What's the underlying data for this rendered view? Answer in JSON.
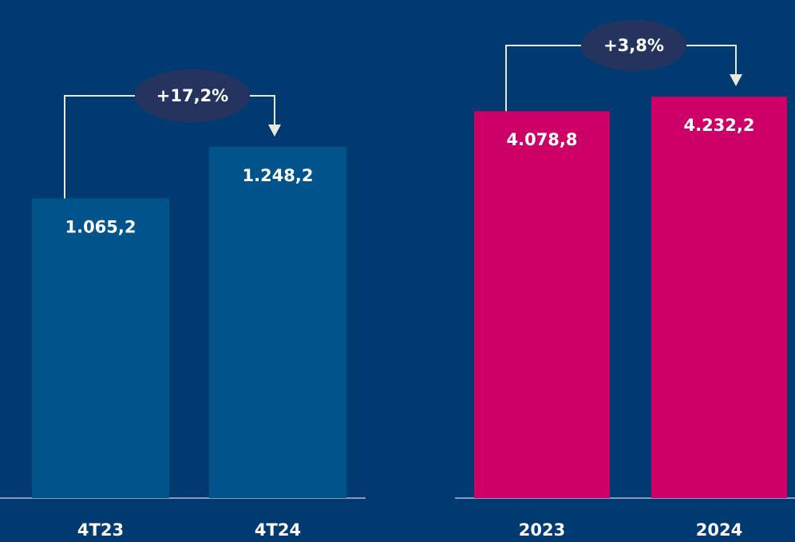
{
  "chart_data": [
    {
      "type": "bar",
      "categories": [
        "4T23",
        "4T24"
      ],
      "values": [
        1065.2,
        1248.2
      ],
      "value_labels": [
        "1.065,2",
        "1.248,2"
      ],
      "color": "#00538b",
      "annotation": "+17,2%"
    },
    {
      "type": "bar",
      "categories": [
        "2023",
        "2024"
      ],
      "values": [
        4078.8,
        4232.2
      ],
      "value_labels": [
        "4.078,8",
        "4.232,2"
      ],
      "color": "#cc0066",
      "annotation": "+3,8%"
    }
  ]
}
